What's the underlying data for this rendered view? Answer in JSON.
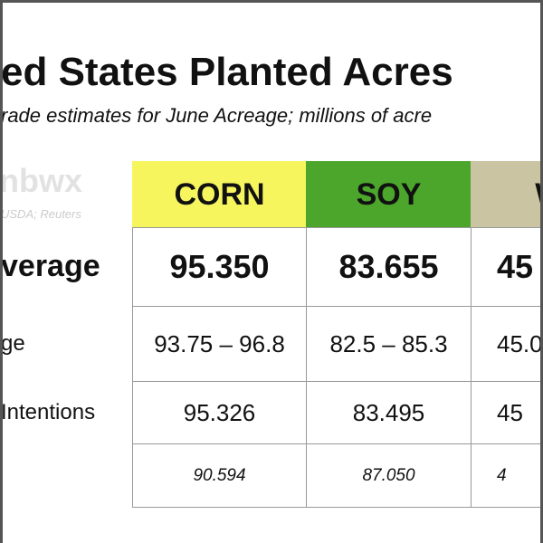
{
  "header": {
    "title": "ed States Planted Acres",
    "subtitle": "rade estimates for June Acreage; millions of acre"
  },
  "watermark": {
    "logo": "nbwx",
    "source": "USDA; Reuters"
  },
  "table": {
    "columns": [
      "CORN",
      "SOY",
      "WI"
    ],
    "rows": [
      [
        "verage",
        "95.350",
        "83.655",
        "45"
      ],
      [
        "ge",
        "93.75 – 96.8",
        "82.5 – 85.3",
        "45.0"
      ],
      [
        "Intentions",
        "95.326",
        "83.495",
        "45"
      ],
      [
        "",
        "90.594",
        "87.050",
        "4"
      ]
    ]
  }
}
